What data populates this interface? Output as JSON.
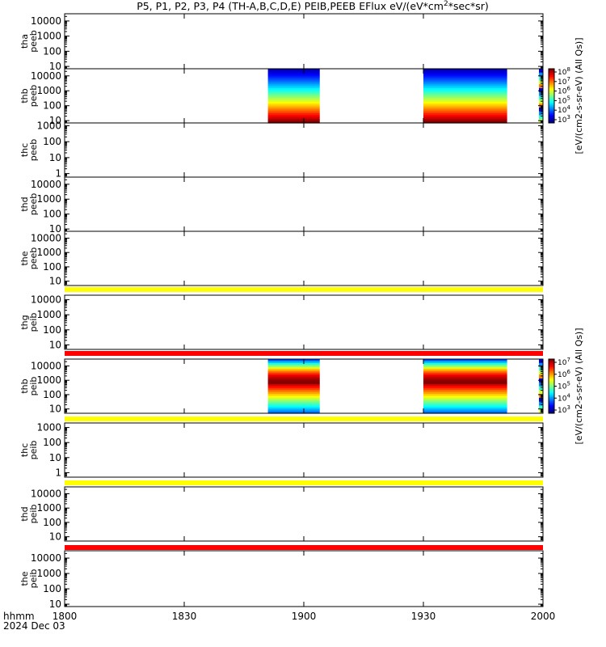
{
  "chart_data": {
    "type": "heatmap",
    "title": "P5, P1, P2, P3, P4 (TH-A,B,C,D,E) PEIB,PEEB EFlux eV/(eV*cm2*sec*sr)",
    "title_parts": [
      "P5, P1, P2, P3, P4 (TH-A,B,C,D,E) PEIB,PEEB EFlux eV/(eV*cm",
      "2",
      "*sec*sr)"
    ],
    "x_axis": {
      "label_line1": "hhmm",
      "label_line2": "2024 Dec 03",
      "range": [
        "1800",
        "2000"
      ],
      "tick_labels": [
        "1800",
        "1830",
        "1900",
        "1930",
        "2000"
      ]
    },
    "y_scale": "log",
    "panels": [
      {
        "probe": "tha",
        "product": "peeb",
        "ylim": [
          7,
          30000
        ],
        "ticks": [
          "10000",
          "1000",
          "100",
          "10"
        ],
        "bursts": []
      },
      {
        "probe": "thb",
        "product": "peeb",
        "ylim": [
          7,
          30000
        ],
        "ticks": [
          "10000",
          "1000",
          "100",
          "10"
        ],
        "bursts": [
          {
            "start": "1851",
            "end": "1904"
          },
          {
            "start": "1930",
            "end": "1951"
          }
        ]
      },
      {
        "probe": "thc",
        "product": "peeb",
        "ylim": [
          0.6,
          1500
        ],
        "ticks": [
          "1000",
          "100",
          "10",
          "1"
        ],
        "bursts": []
      },
      {
        "probe": "thd",
        "product": "peeb",
        "ylim": [
          7,
          30000
        ],
        "ticks": [
          "10000",
          "1000",
          "100",
          "10"
        ],
        "bursts": []
      },
      {
        "probe": "the",
        "product": "peeb",
        "ylim": [
          5,
          30000
        ],
        "ticks": [
          "10000",
          "1000",
          "100",
          "10"
        ],
        "bursts": []
      },
      {
        "probe": "thg",
        "product": "peib",
        "ylim": [
          5,
          20000
        ],
        "ticks": [
          "10000",
          "1000",
          "100",
          "10"
        ],
        "bursts": []
      },
      {
        "probe": "thb",
        "product": "peib",
        "ylim": [
          5,
          30000
        ],
        "ticks": [
          "10000",
          "1000",
          "100",
          "10"
        ],
        "bursts": [
          {
            "start": "1851",
            "end": "1904"
          },
          {
            "start": "1930",
            "end": "1951"
          }
        ]
      },
      {
        "probe": "thc",
        "product": "peib",
        "ylim": [
          0.5,
          2000
        ],
        "ticks": [
          "1000",
          "100",
          "10",
          "1"
        ],
        "bursts": []
      },
      {
        "probe": "thd",
        "product": "peib",
        "ylim": [
          5,
          30000
        ],
        "ticks": [
          "10000",
          "1000",
          "100",
          "10"
        ],
        "bursts": []
      },
      {
        "probe": "the",
        "product": "peib",
        "ylim": [
          7,
          30000
        ],
        "ticks": [
          "10000",
          "1000",
          "100",
          "10"
        ],
        "bursts": []
      }
    ],
    "flag_bars": [
      {
        "after_panel": "the peeb",
        "color": "#ffff00"
      },
      {
        "after_panel": "thg peib",
        "color": "#ff0000"
      },
      {
        "after_panel": "thb peib",
        "color": "#ffff00"
      },
      {
        "after_panel": "thc peib",
        "color": "#ffff00"
      },
      {
        "after_panel": "thd peib",
        "color": "#ff0000"
      }
    ],
    "colorbars": [
      {
        "panel": "thb peeb",
        "label": "[eV/(cm2-s-sr-eV) (All Qs)]",
        "ticks": [
          "10^8",
          "10^7",
          "10^6",
          "10^5",
          "10^4",
          "10^3"
        ]
      },
      {
        "panel": "thb peib",
        "label": "[eV/(cm2-s-sr-eV) (All Qs)]",
        "ticks": [
          "10^7",
          "10^6",
          "10^5",
          "10^4",
          "10^3"
        ]
      }
    ]
  }
}
